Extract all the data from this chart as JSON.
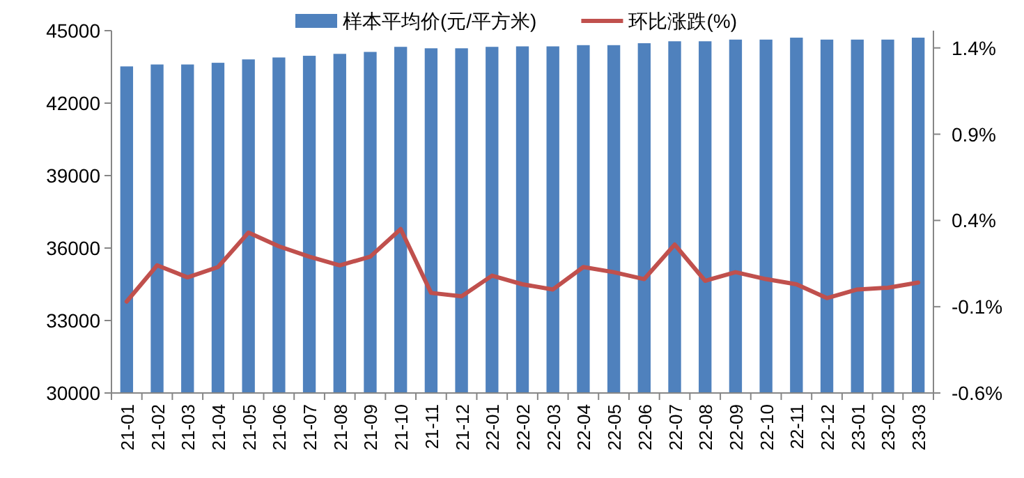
{
  "chart_data": {
    "type": "bar",
    "categories": [
      "21-01",
      "21-02",
      "21-03",
      "21-04",
      "21-05",
      "21-06",
      "21-07",
      "21-08",
      "21-09",
      "21-10",
      "21-11",
      "21-12",
      "22-01",
      "22-02",
      "22-03",
      "22-04",
      "22-05",
      "22-06",
      "22-07",
      "22-08",
      "22-09",
      "22-10",
      "22-11",
      "22-12",
      "23-01",
      "23-02",
      "23-03"
    ],
    "series": [
      {
        "name": "样本平均价(元/平方米)",
        "color": "#4f81bd",
        "values": [
          43520,
          43600,
          43600,
          43670,
          43810,
          43890,
          43960,
          44040,
          44120,
          44330,
          44270,
          44270,
          44330,
          44350,
          44350,
          44400,
          44400,
          44480,
          44560,
          44560,
          44630,
          44630,
          44710,
          44630,
          44630,
          44630,
          44710
        ]
      },
      {
        "name": "环比涨跌(%)",
        "type": "line",
        "axis": "y2",
        "color": "#c0504d",
        "values": [
          -0.07,
          0.14,
          0.07,
          0.13,
          0.33,
          0.25,
          0.19,
          0.14,
          0.19,
          0.35,
          -0.02,
          -0.04,
          0.08,
          0.03,
          0.0,
          0.13,
          0.1,
          0.06,
          0.26,
          0.05,
          0.1,
          0.06,
          0.03,
          -0.05,
          0.0,
          0.01,
          0.04
        ]
      }
    ],
    "ylim": [
      30000,
      45000
    ],
    "yticks": [
      30000,
      33000,
      36000,
      39000,
      42000,
      45000
    ],
    "y2lim": [
      -0.6,
      1.5
    ],
    "y2ticks": [
      {
        "value": -0.6,
        "label": "-0.6%"
      },
      {
        "value": -0.1,
        "label": "-0.1%"
      },
      {
        "value": 0.4,
        "label": "0.4%"
      },
      {
        "value": 0.9,
        "label": "0.9%"
      },
      {
        "value": 1.4,
        "label": "1.4%"
      }
    ],
    "legend": "top",
    "grid": false,
    "marker": "none",
    "line_style": "solid"
  }
}
